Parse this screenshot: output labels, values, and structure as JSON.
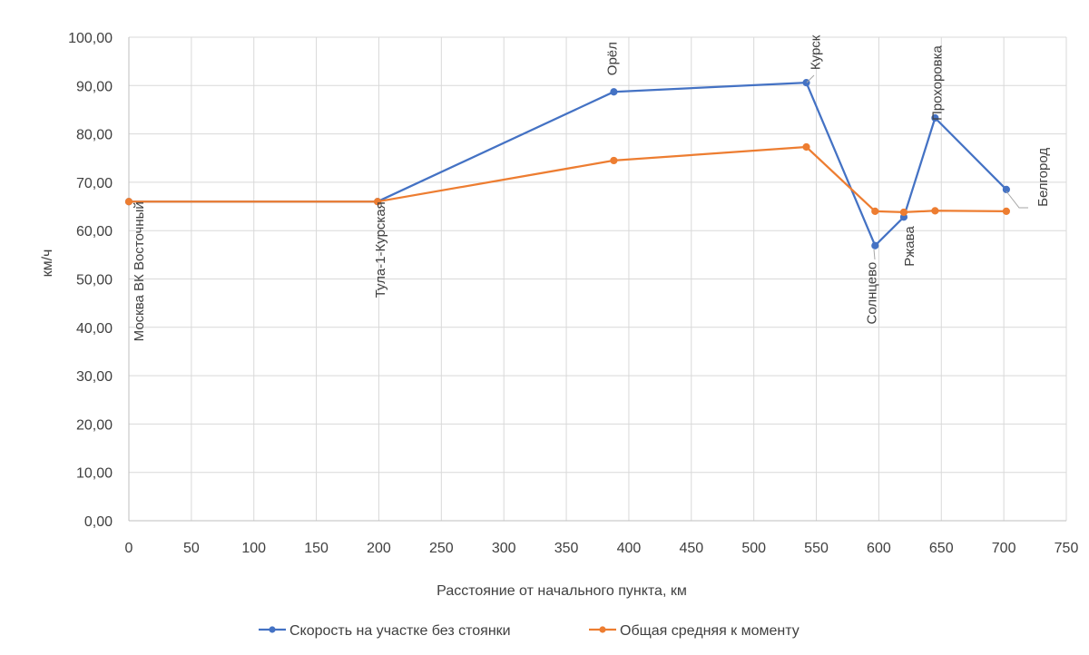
{
  "chart_data": {
    "type": "line",
    "title": "",
    "xlabel": "Расстояние от начального пункта, км",
    "ylabel": "км/ч",
    "xlim": [
      0,
      750
    ],
    "ylim": [
      0,
      100
    ],
    "x_ticks": [
      0,
      50,
      100,
      150,
      200,
      250,
      300,
      350,
      400,
      450,
      500,
      550,
      600,
      650,
      700,
      750
    ],
    "x_tick_labels": [
      "0",
      "50",
      "100",
      "150",
      "200",
      "250",
      "300",
      "350",
      "400",
      "450",
      "500",
      "550",
      "600",
      "650",
      "700",
      "750"
    ],
    "y_ticks": [
      0,
      10,
      20,
      30,
      40,
      50,
      60,
      70,
      80,
      90,
      100
    ],
    "y_tick_labels": [
      "0,00",
      "10,00",
      "20,00",
      "30,00",
      "40,00",
      "50,00",
      "60,00",
      "70,00",
      "80,00",
      "90,00",
      "100,00"
    ],
    "grid": true,
    "legend_position": "bottom",
    "colors": {
      "series1": "#4472C4",
      "series2": "#ED7D31",
      "grid": "#D9D9D9",
      "text": "#404040",
      "leader": "#A6A6A6"
    },
    "series": [
      {
        "name": "Скорость на участке без стоянки",
        "x": [
          0,
          199,
          388,
          542,
          597,
          620,
          645,
          702
        ],
        "y": [
          66.0,
          66.0,
          88.7,
          90.6,
          56.9,
          62.8,
          83.3,
          68.5
        ]
      },
      {
        "name": "Общая средняя к моменту",
        "x": [
          0,
          199,
          388,
          542,
          597,
          620,
          645,
          702
        ],
        "y": [
          66.0,
          66.0,
          74.5,
          77.3,
          64.0,
          63.8,
          64.1,
          64.0
        ]
      }
    ],
    "annotations": [
      {
        "text": "Москва ВК Восточный",
        "x": 0,
        "y": 66.0
      },
      {
        "text": "Тула-1-Курская",
        "x": 199,
        "y": 66.0
      },
      {
        "text": "Орёл",
        "x": 388,
        "y": 88.7
      },
      {
        "text": "Курск",
        "x": 542,
        "y": 90.6
      },
      {
        "text": "Солнцево",
        "x": 597,
        "y": 56.9
      },
      {
        "text": "Ржава",
        "x": 620,
        "y": 62.8
      },
      {
        "text": "Прохоровка",
        "x": 645,
        "y": 83.3
      },
      {
        "text": "Белгород",
        "x": 702,
        "y": 68.5
      }
    ]
  }
}
